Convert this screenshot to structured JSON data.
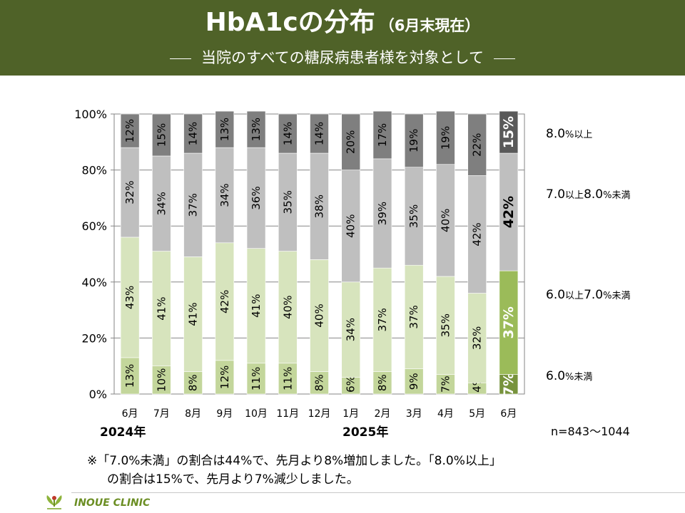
{
  "header": {
    "title": "HbA1cの分布",
    "title_note": "（6月末現在）",
    "subtitle": "当院のすべての糖尿病患者様を対象として"
  },
  "chart_data": {
    "type": "bar",
    "stacked": true,
    "categories": [
      "6月",
      "7月",
      "8月",
      "9月",
      "10月",
      "11月",
      "12月",
      "1月",
      "2月",
      "3月",
      "4月",
      "5月",
      "6月"
    ],
    "y_tick_labels": [
      "0%",
      "20%",
      "40%",
      "60%",
      "80%",
      "100%"
    ],
    "ylim": [
      0,
      100
    ],
    "grid": true,
    "series": [
      {
        "name": "6.0%未満",
        "values": [
          13,
          10,
          8,
          12,
          11,
          11,
          8,
          6,
          8,
          9,
          7,
          4,
          7
        ],
        "color": "#c3d69b",
        "latest_color": "#77933c"
      },
      {
        "name": "6.0以上7.0%未満",
        "values": [
          43,
          41,
          41,
          42,
          41,
          40,
          40,
          34,
          37,
          37,
          35,
          32,
          37
        ],
        "color": "#d7e4bd",
        "latest_color": "#9bbb59"
      },
      {
        "name": "7.0以上8.0%未満",
        "values": [
          32,
          34,
          37,
          34,
          36,
          35,
          38,
          40,
          39,
          35,
          40,
          42,
          42
        ],
        "color": "#bfbfbf",
        "latest_color": "#bfbfbf"
      },
      {
        "name": "8.0%以上",
        "values": [
          12,
          15,
          14,
          13,
          13,
          14,
          14,
          20,
          17,
          19,
          19,
          22,
          15
        ],
        "color": "#7f7f7f",
        "latest_color": "#595959"
      }
    ],
    "data_labels": [
      [
        "13%",
        "10%",
        "8%",
        "12%",
        "11%",
        "11%",
        "8%",
        "6%",
        "8%",
        "9%",
        "7%",
        "4%",
        "7%"
      ],
      [
        "43%",
        "41%",
        "41%",
        "42%",
        "41%",
        "40%",
        "40%",
        "34%",
        "37%",
        "37%",
        "35%",
        "32%",
        "37%"
      ],
      [
        "32%",
        "34%",
        "37%",
        "34%",
        "36%",
        "35%",
        "38%",
        "40%",
        "39%",
        "35%",
        "40%",
        "42%",
        "42%"
      ],
      [
        "12%",
        "15%",
        "14%",
        "13%",
        "13%",
        "14%",
        "14%",
        "20%",
        "17%",
        "19%",
        "19%",
        "22%",
        "15%"
      ]
    ],
    "year_labels": [
      "2024年",
      "2025年"
    ],
    "n_label": "n=843～1044"
  },
  "legend": {
    "s4": {
      "a": "8.0",
      "b": "%以上"
    },
    "s3": {
      "a": "7.0",
      "b": "以上",
      "c": "8.0",
      "d": "%未満"
    },
    "s2": {
      "a": "6.0",
      "b": "以上",
      "c": "7.0",
      "d": "%未満"
    },
    "s1": {
      "a": "6.0",
      "b": "%未満"
    }
  },
  "note": {
    "line1": "※「7.0%未満」の割合は44%で、先月より8%増加しました。「8.0%以上」",
    "line2": "の割合は15%で、先月より7%減少しました。"
  },
  "footer": {
    "clinic": "INOUE CLINIC",
    "logo_icon": "clinic-logo-icon"
  }
}
